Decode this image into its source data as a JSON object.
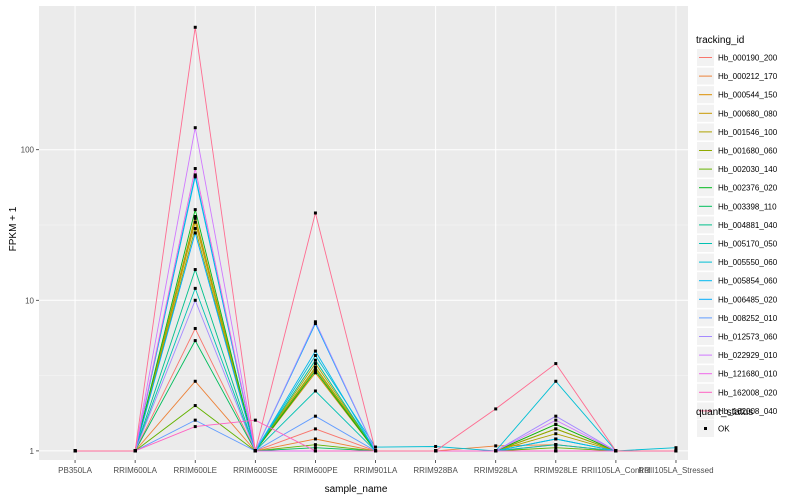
{
  "chart_data": {
    "type": "line",
    "xlabel": "sample_name",
    "ylabel": "FPKM + 1",
    "y_scale": "log10",
    "ylim": [
      0.87,
      900
    ],
    "y_ticks": [
      1,
      10,
      100
    ],
    "y_tick_labels": [
      "1",
      "10",
      "100"
    ],
    "grid": true,
    "panel_background": "#ebebeb",
    "categories": [
      "PB350LA",
      "RRIM600LA",
      "RRIM600LE",
      "RRIM600SE",
      "RRIM600PE",
      "RRIM901LA",
      "RRIM928BA",
      "RRIM928LA",
      "RRIM928LE",
      "RRII105LA_Control",
      "RRII105LA_Stressed"
    ],
    "legend": {
      "title": "tracking_id",
      "position": "right"
    },
    "series": [
      {
        "name": "Hb_000190_200",
        "color": "#F8766D",
        "values": [
          1.0,
          1.0,
          6.5,
          1.0,
          1.4,
          1.0,
          1.0,
          1.0,
          1.1,
          1.0,
          1.0
        ]
      },
      {
        "name": "Hb_000212_170",
        "color": "#EC8239",
        "values": [
          1.0,
          1.0,
          2.9,
          1.0,
          1.2,
          1.0,
          1.0,
          1.08,
          1.1,
          1.0,
          1.0
        ]
      },
      {
        "name": "Hb_000544_150",
        "color": "#DB8E00",
        "values": [
          1.0,
          1.0,
          36,
          1.0,
          3.3,
          1.0,
          1.0,
          1.0,
          1.5,
          1.0,
          1.0
        ]
      },
      {
        "name": "Hb_000680_080",
        "color": "#C79800",
        "values": [
          1.0,
          1.0,
          33,
          1.0,
          3.5,
          1.0,
          1.0,
          1.0,
          1.4,
          1.0,
          1.0
        ]
      },
      {
        "name": "Hb_001546_100",
        "color": "#AEA200",
        "values": [
          1.0,
          1.0,
          35,
          1.0,
          3.8,
          1.0,
          1.0,
          1.0,
          1.3,
          1.0,
          1.0
        ]
      },
      {
        "name": "Hb_001680_060",
        "color": "#8FAA00",
        "values": [
          1.0,
          1.0,
          30,
          1.0,
          3.6,
          1.0,
          1.0,
          1.0,
          1.4,
          1.0,
          1.0
        ]
      },
      {
        "name": "Hb_002030_140",
        "color": "#64B200",
        "values": [
          1.0,
          1.0,
          2.0,
          1.0,
          1.1,
          1.0,
          1.0,
          1.0,
          1.05,
          1.0,
          1.0
        ]
      },
      {
        "name": "Hb_002376_020",
        "color": "#00B81B",
        "values": [
          1.0,
          1.0,
          40,
          1.0,
          3.4,
          1.0,
          1.0,
          1.0,
          1.5,
          1.0,
          1.0
        ]
      },
      {
        "name": "Hb_003398_110",
        "color": "#00BD5C",
        "values": [
          1.0,
          1.0,
          5.4,
          1.0,
          1.05,
          1.0,
          1.0,
          1.0,
          1.0,
          1.0,
          1.0
        ]
      },
      {
        "name": "Hb_004881_040",
        "color": "#00C08B",
        "values": [
          1.0,
          1.0,
          16,
          1.0,
          4.0,
          1.0,
          1.0,
          1.0,
          1.2,
          1.0,
          1.0
        ]
      },
      {
        "name": "Hb_005170_050",
        "color": "#00C1B2",
        "values": [
          1.0,
          1.0,
          12,
          1.0,
          2.5,
          1.0,
          1.0,
          1.0,
          1.1,
          1.0,
          1.0
        ]
      },
      {
        "name": "Hb_005550_060",
        "color": "#00BFD4",
        "values": [
          1.0,
          1.0,
          68,
          1.0,
          4.3,
          1.06,
          1.07,
          1.0,
          2.9,
          1.0,
          1.05
        ]
      },
      {
        "name": "Hb_005854_060",
        "color": "#00B8EF",
        "values": [
          1.0,
          1.0,
          66,
          1.0,
          4.6,
          1.0,
          1.0,
          1.0,
          1.2,
          1.0,
          1.0
        ]
      },
      {
        "name": "Hb_006485_020",
        "color": "#00ACFC",
        "values": [
          1.0,
          1.0,
          28,
          1.0,
          7.0,
          1.0,
          1.0,
          1.0,
          1.0,
          1.0,
          1.0
        ]
      },
      {
        "name": "Hb_008252_010",
        "color": "#619CFF",
        "values": [
          1.0,
          1.0,
          1.6,
          1.0,
          1.7,
          1.0,
          1.0,
          1.0,
          1.0,
          1.0,
          1.0
        ]
      },
      {
        "name": "Hb_012573_060",
        "color": "#A58AFF",
        "values": [
          1.0,
          1.0,
          10,
          1.0,
          7.2,
          1.0,
          1.0,
          1.0,
          1.7,
          1.0,
          1.0
        ]
      },
      {
        "name": "Hb_022929_010",
        "color": "#D078FF",
        "values": [
          1.0,
          1.0,
          140,
          1.0,
          1.0,
          1.0,
          1.0,
          1.0,
          1.6,
          1.0,
          1.0
        ]
      },
      {
        "name": "Hb_121680_010",
        "color": "#F066EA",
        "values": [
          1.0,
          1.0,
          75,
          1.0,
          1.0,
          1.0,
          1.0,
          1.0,
          1.0,
          1.0,
          1.0
        ]
      },
      {
        "name": "Hb_162008_020",
        "color": "#FF61C3",
        "values": [
          1.0,
          1.0,
          1.45,
          1.6,
          1.0,
          1.0,
          1.0,
          1.0,
          1.0,
          1.0,
          1.0
        ]
      },
      {
        "name": "Hb_162008_040",
        "color": "#FF6C91",
        "values": [
          1.0,
          1.0,
          650,
          1.0,
          38,
          1.0,
          1.0,
          1.9,
          3.8,
          1.0,
          1.0
        ]
      }
    ],
    "point_legend": {
      "title": "quant_status",
      "items": [
        {
          "label": "OK",
          "color": "#000000"
        }
      ]
    }
  }
}
